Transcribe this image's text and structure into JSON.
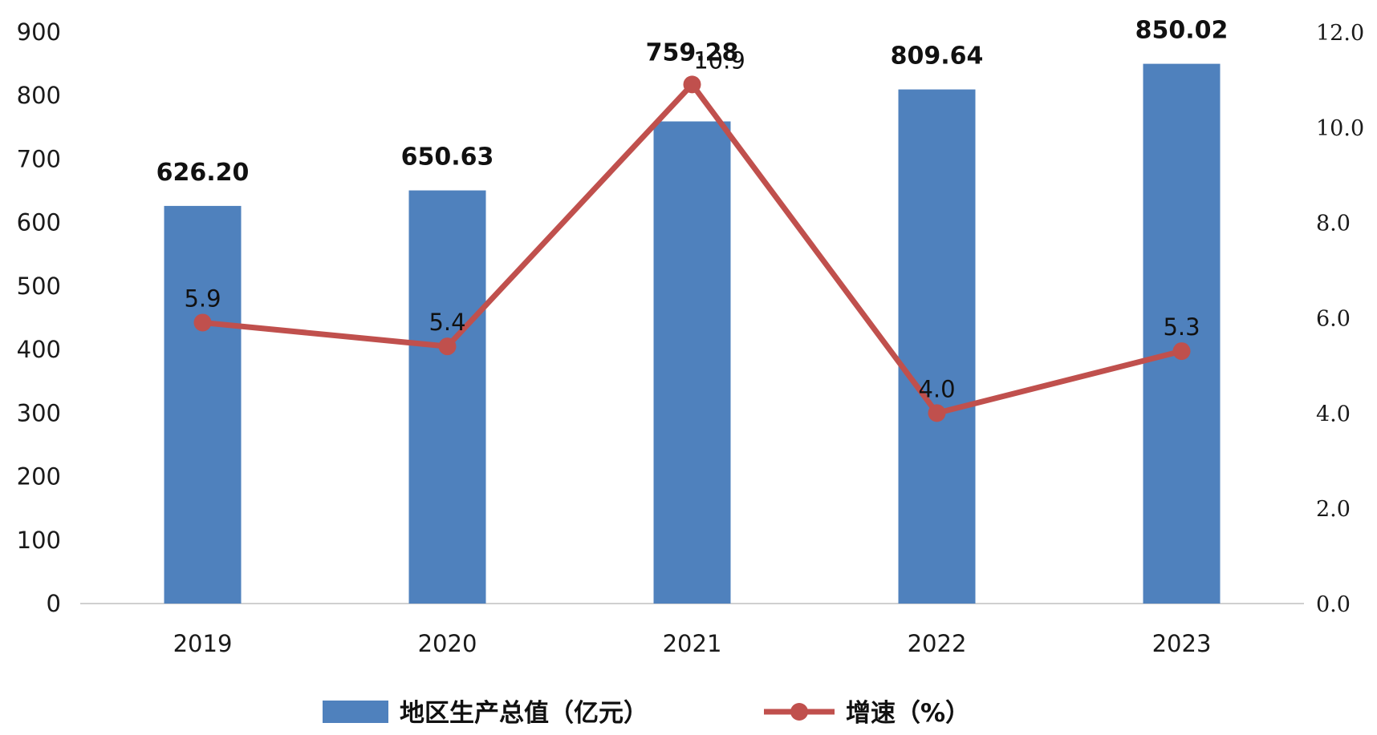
{
  "chart_data": {
    "type": "bar",
    "title": "",
    "xlabel": "",
    "ylabel": "",
    "categories": [
      "2019",
      "2020",
      "2021",
      "2022",
      "2023"
    ],
    "y_left": {
      "range": [
        0,
        900
      ],
      "ticks": [
        "0",
        "100",
        "200",
        "300",
        "400",
        "500",
        "600",
        "700",
        "800",
        "900"
      ]
    },
    "y_right": {
      "range": [
        0,
        12
      ],
      "ticks": [
        "0.0",
        "2.0",
        "4.0",
        "6.0",
        "8.0",
        "10.0",
        "12.0"
      ]
    },
    "grid": false,
    "legend_position": "bottom",
    "series": [
      {
        "name": "地区生产总值（亿元）",
        "type": "bar",
        "axis": "left",
        "color": "#4f81bd",
        "values": [
          626.2,
          650.63,
          759.28,
          809.64,
          850.02
        ],
        "labels": [
          "626.20",
          "650.63",
          "759.28",
          "809.64",
          "850.02"
        ]
      },
      {
        "name": "增速（%）",
        "type": "line",
        "axis": "right",
        "color": "#c0504d",
        "values": [
          5.9,
          5.4,
          10.9,
          4.0,
          5.3
        ],
        "labels": [
          "5.9",
          "5.4",
          "10.9",
          "4.0",
          "5.3"
        ]
      }
    ]
  }
}
